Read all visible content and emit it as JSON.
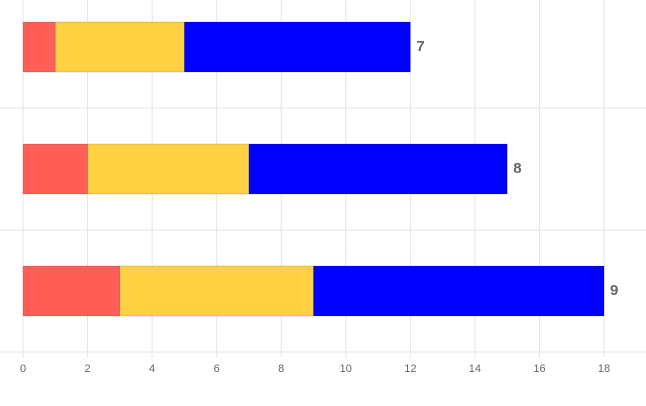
{
  "chart_data": {
    "type": "stacked_bar",
    "orientation": "horizontal",
    "categories": [
      null,
      null,
      null
    ],
    "series": [
      {
        "color": "#ff5f57",
        "values": [
          1,
          2,
          3
        ]
      },
      {
        "color": "#ffd042",
        "values": [
          4,
          5,
          6
        ]
      },
      {
        "color": "#0000ff",
        "values": [
          7,
          8,
          9
        ],
        "data_labels": true
      }
    ],
    "xlim": [
      0,
      19.3
    ],
    "xticks": [
      0,
      2,
      4,
      6,
      8,
      10,
      12,
      14,
      16,
      18
    ],
    "grid": true
  }
}
